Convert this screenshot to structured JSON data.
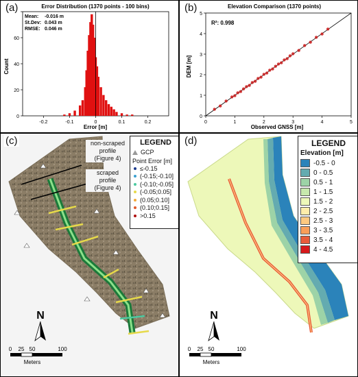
{
  "panels": {
    "a": {
      "label": "(a)"
    },
    "b": {
      "label": "(b)"
    },
    "c": {
      "label": "(c)"
    },
    "d": {
      "label": "(d)"
    }
  },
  "chart_data": [
    {
      "type": "bar",
      "title": "Error Distribution (1370 points - 100 bins)",
      "xlabel": "Error [m]",
      "ylabel": "Count",
      "xlim": [
        -0.28,
        0.28
      ],
      "ylim": [
        0,
        80
      ],
      "xticks": [
        "-0.2",
        "-0.1",
        "0",
        "0.1",
        "0.2"
      ],
      "yticks": [
        "0",
        "20",
        "40",
        "60",
        "80"
      ],
      "stats": [
        {
          "label": "Mean:",
          "value": "-0.016 m"
        },
        {
          "label": "St.Dev:",
          "value": "0.043 m"
        },
        {
          "label": "RMSE:",
          "value": "0.046 m"
        }
      ],
      "bar_color": "#e01010",
      "bins": {
        "x": [
          -0.12,
          -0.1,
          -0.08,
          -0.06,
          -0.05,
          -0.04,
          -0.035,
          -0.03,
          -0.025,
          -0.02,
          -0.015,
          -0.01,
          -0.005,
          0,
          0.005,
          0.01,
          0.02,
          0.03,
          0.04,
          0.05,
          0.06,
          0.07,
          0.08,
          0.1,
          0.12,
          0.14
        ],
        "values": [
          1,
          2,
          4,
          8,
          12,
          22,
          35,
          50,
          62,
          72,
          78,
          70,
          60,
          45,
          38,
          30,
          22,
          16,
          12,
          9,
          7,
          5,
          3,
          2,
          1,
          1
        ]
      }
    },
    {
      "type": "scatter",
      "title": "Elevation Comparison (1370 points)",
      "xlabel": "Observed GNSS [m]",
      "ylabel": "DEM [m]",
      "xlim": [
        0,
        5
      ],
      "ylim": [
        0,
        5
      ],
      "xticks": [
        "0",
        "1",
        "2",
        "3",
        "4",
        "5"
      ],
      "yticks": [
        "0",
        "1",
        "2",
        "3",
        "4",
        "5"
      ],
      "r2_label": "R²: 0.998",
      "point_color": "#cc1a1a",
      "points": {
        "x": [
          0.3,
          0.5,
          0.7,
          0.9,
          1.0,
          1.1,
          1.2,
          1.3,
          1.4,
          1.5,
          1.6,
          1.7,
          1.8,
          1.9,
          2.0,
          2.1,
          2.2,
          2.3,
          2.4,
          2.5,
          2.6,
          2.7,
          2.8,
          2.9,
          3.0,
          3.2,
          3.4,
          3.6,
          3.8,
          4.0,
          4.2
        ],
        "y": [
          0.32,
          0.48,
          0.72,
          0.92,
          0.98,
          1.12,
          1.18,
          1.31,
          1.42,
          1.48,
          1.62,
          1.68,
          1.82,
          1.88,
          2.02,
          2.08,
          2.22,
          2.28,
          2.41,
          2.52,
          2.58,
          2.72,
          2.78,
          2.92,
          3.02,
          3.18,
          3.42,
          3.58,
          3.82,
          3.98,
          4.22
        ]
      }
    }
  ],
  "legend_c": {
    "title": "LEGEND",
    "gcp_label": "GCP",
    "point_error_title": "Point Error [m]",
    "items": [
      {
        "label": "≤-0.15",
        "color": "#1b3a8c"
      },
      {
        "label": "(-0.15;-0.10]",
        "color": "#3aa0d0"
      },
      {
        "label": "(-0.10;-0.05]",
        "color": "#4cc9a0"
      },
      {
        "label": "(-0.05;0.05]",
        "color": "#e6d94a"
      },
      {
        "label": "(0.05;0.10]",
        "color": "#f2a93a"
      },
      {
        "label": "(0.10;0.15]",
        "color": "#e25a2a"
      },
      {
        "label": ">0.15",
        "color": "#b01010"
      }
    ],
    "annotations": {
      "nonscraped": [
        "non-scraped",
        "profile",
        "(Figure 4)"
      ],
      "scraped": [
        "scraped",
        "profile",
        "(Figure 4)"
      ]
    }
  },
  "legend_d": {
    "title": "LEGEND",
    "subtitle": "Elevation [m]",
    "items": [
      {
        "label": "-0.5 - 0",
        "color": "#2b83ba"
      },
      {
        "label": "0 - 0.5",
        "color": "#64abb0"
      },
      {
        "label": "0.5 - 1",
        "color": "#9dd3a7"
      },
      {
        "label": "1 - 1.5",
        "color": "#c7e9ad"
      },
      {
        "label": "1.5 - 2",
        "color": "#edf8b9"
      },
      {
        "label": "2 - 2.5",
        "color": "#ffedaa"
      },
      {
        "label": "2.5 - 3",
        "color": "#fec980"
      },
      {
        "label": "3 - 3.5",
        "color": "#f99e59"
      },
      {
        "label": "3.5 - 4",
        "color": "#e85b3a"
      },
      {
        "label": "4 - 4.5",
        "color": "#d7191c"
      }
    ]
  },
  "north": "N",
  "scale": {
    "ticks": [
      "0",
      "25",
      "50",
      "100"
    ],
    "unit": "Meters"
  }
}
